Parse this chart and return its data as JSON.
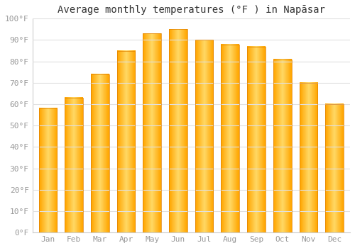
{
  "title": "Average monthly temperatures (°F ) in Napāsar",
  "months": [
    "Jan",
    "Feb",
    "Mar",
    "Apr",
    "May",
    "Jun",
    "Jul",
    "Aug",
    "Sep",
    "Oct",
    "Nov",
    "Dec"
  ],
  "values": [
    58,
    63,
    74,
    85,
    93,
    95,
    90,
    88,
    87,
    81,
    70,
    60
  ],
  "bar_color": "#FFA500",
  "bar_highlight": "#FFD966",
  "ylim": [
    0,
    100
  ],
  "yticks": [
    0,
    10,
    20,
    30,
    40,
    50,
    60,
    70,
    80,
    90,
    100
  ],
  "ytick_labels": [
    "0°F",
    "10°F",
    "20°F",
    "30°F",
    "40°F",
    "50°F",
    "60°F",
    "70°F",
    "80°F",
    "90°F",
    "100°F"
  ],
  "background_color": "#FFFFFF",
  "grid_color": "#E0E0E0",
  "title_fontsize": 10,
  "tick_fontsize": 8,
  "tick_color": "#999999",
  "bar_edge_color": "#E08000",
  "bar_width": 0.7
}
